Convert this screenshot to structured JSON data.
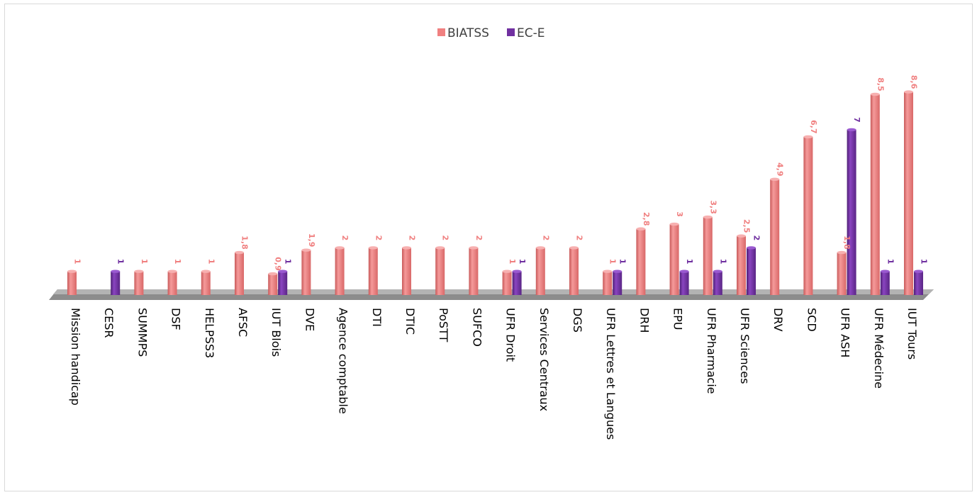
{
  "chart_data": {
    "type": "bar",
    "title": "",
    "xlabel": "",
    "ylabel": "",
    "ylim": [
      0,
      10
    ],
    "grid": false,
    "legend_position": "top",
    "categories": [
      "Mission handicap",
      "CESR",
      "SUMMPS",
      "DSF",
      "HELPSS3",
      "AFSC",
      "IUT Blois",
      "DVE",
      "Agence comptable",
      "DTI",
      "DTIC",
      "PoSTT",
      "SUFCO",
      "UFR Droit",
      "Services Centraux",
      "DGS",
      "UFR Lettres et Langues",
      "DRH",
      "EPU",
      "UFR Pharmacie",
      "UFR Sciences",
      "DRV",
      "SCD",
      "UFR ASH",
      "UFR Médecine",
      "IUT Tours"
    ],
    "series": [
      {
        "name": "BIATSS",
        "color": "#f08080",
        "values": [
          1,
          null,
          1,
          1,
          1,
          1.8,
          0.9,
          1.9,
          2,
          2,
          2,
          2,
          2,
          1,
          2,
          2,
          1,
          2.8,
          3,
          3.3,
          2.5,
          4.9,
          6.7,
          1.8,
          8.5,
          8.6
        ],
        "labels": [
          "1",
          "",
          "1",
          "1",
          "1",
          "1,8",
          "0,9",
          "1,9",
          "2",
          "2",
          "2",
          "2",
          "2",
          "1",
          "2",
          "2",
          "1",
          "2,8",
          "3",
          "3,3",
          "2,5",
          "4,9",
          "6,7",
          "1,8",
          "8,5",
          "8,6"
        ]
      },
      {
        "name": "EC-E",
        "color": "#7030a0",
        "values": [
          null,
          1,
          null,
          null,
          null,
          null,
          1,
          null,
          null,
          null,
          null,
          null,
          null,
          1,
          null,
          null,
          1,
          null,
          1,
          1,
          2,
          null,
          null,
          7,
          1,
          1
        ],
        "labels": [
          "",
          "1",
          "",
          "",
          "",
          "",
          "1",
          "",
          "",
          "",
          "",
          "",
          "",
          "1",
          "",
          "",
          "1",
          "",
          "1",
          "1",
          "2",
          "",
          "",
          "7",
          "1",
          "1"
        ]
      }
    ]
  }
}
